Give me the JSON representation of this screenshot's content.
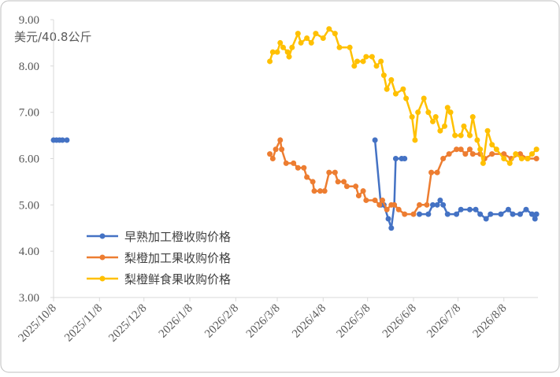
{
  "chart_data": {
    "type": "line",
    "y_label": "美元/40.8公斤",
    "xlim": [
      "2025/10/8",
      "2026/8/31"
    ],
    "xticks": [
      "2025/10/8",
      "2025/11/8",
      "2025/12/8",
      "2026/1/8",
      "2026/2/8",
      "2026/3/8",
      "2026/4/8",
      "2026/5/8",
      "2026/6/8",
      "2026/7/8",
      "2026/8/8"
    ],
    "ylim": [
      3,
      9
    ],
    "yticks": [
      {
        "value": 3,
        "label": "3.00"
      },
      {
        "value": 4,
        "label": "4.00"
      },
      {
        "value": 5,
        "label": "5.00"
      },
      {
        "value": 6,
        "label": "6.00"
      },
      {
        "value": 7,
        "label": "7.00"
      },
      {
        "value": 8,
        "label": "8.00"
      },
      {
        "value": 9,
        "label": "9.00"
      }
    ],
    "legend": "lower left",
    "series": [
      {
        "name": "早熟加工橙收购价格",
        "color": "#4472c4",
        "x": [
          "2025/10/8",
          "2025/10/10",
          "2025/10/12",
          "2025/10/14",
          "2025/10/17",
          "2025/10/20",
          "2026/5/13",
          "2026/5/17",
          "2026/5/19",
          "2026/5/22",
          "2026/5/24",
          "2026/5/26",
          "2026/5/27",
          "2026/5/31",
          "2026/6/2",
          "2026/6/7",
          "2026/6/12",
          "2026/6/18",
          "2026/6/21",
          "2026/6/24",
          "2026/6/26",
          "2026/6/28",
          "2026/7/1",
          "2026/7/7",
          "2026/7/10",
          "2026/7/16",
          "2026/7/20",
          "2026/7/23",
          "2026/7/27",
          "2026/7/30",
          "2026/8/6",
          "2026/8/11",
          "2026/8/14",
          "2026/8/19",
          "2026/8/23",
          "2026/8/27",
          "2026/8/29",
          "2026/8/30"
        ],
        "values": [
          6.4,
          6.4,
          6.4,
          6.4,
          6.4,
          null,
          6.4,
          5.0,
          5.0,
          4.7,
          4.5,
          5.0,
          6.0,
          6.0,
          6.0,
          null,
          4.8,
          4.8,
          5.0,
          5.0,
          5.1,
          5.0,
          4.8,
          4.8,
          4.9,
          4.9,
          4.9,
          4.8,
          4.7,
          4.8,
          4.8,
          4.9,
          4.8,
          4.8,
          4.9,
          4.8,
          4.7,
          4.8
        ]
      },
      {
        "name": "梨橙加工果收购价格",
        "color": "#ed7d31",
        "x": [
          "2026/3/3",
          "2026/3/5",
          "2026/3/7",
          "2026/3/10",
          "2026/3/11",
          "2026/3/14",
          "2026/3/19",
          "2026/3/22",
          "2026/3/26",
          "2026/3/28",
          "2026/4/1",
          "2026/4/2",
          "2026/4/6",
          "2026/4/9",
          "2026/4/12",
          "2026/4/16",
          "2026/4/18",
          "2026/4/22",
          "2026/4/24",
          "2026/4/30",
          "2026/5/2",
          "2026/5/5",
          "2026/5/7",
          "2026/5/13",
          "2026/5/16",
          "2026/5/18",
          "2026/5/21",
          "2026/5/24",
          "2026/5/26",
          "2026/5/29",
          "2026/6/2",
          "2026/6/8",
          "2026/6/12",
          "2026/6/17",
          "2026/6/20",
          "2026/6/24",
          "2026/6/28",
          "2026/7/2",
          "2026/7/7",
          "2026/7/10",
          "2026/7/13",
          "2026/7/16",
          "2026/7/18",
          "2026/7/23",
          "2026/7/26",
          "2026/7/31",
          "2026/8/8",
          "2026/8/13",
          "2026/8/19",
          "2026/8/24",
          "2026/8/30"
        ],
        "values": [
          6.1,
          6.0,
          6.2,
          6.4,
          6.2,
          5.9,
          5.9,
          5.8,
          5.8,
          5.6,
          5.5,
          5.3,
          5.3,
          5.3,
          5.7,
          5.7,
          5.5,
          5.5,
          5.4,
          5.4,
          5.2,
          5.3,
          5.1,
          5.1,
          5.0,
          5.1,
          4.9,
          5.0,
          5.0,
          4.9,
          4.8,
          4.8,
          5.0,
          5.0,
          5.7,
          5.7,
          6.0,
          6.1,
          6.2,
          6.2,
          6.1,
          6.2,
          6.1,
          6.1,
          6.0,
          6.1,
          6.1,
          6.0,
          6.1,
          6.0,
          6.0
        ]
      },
      {
        "name": "梨橙鲜食果收购价格",
        "color": "#ffc000",
        "x": [
          "2026/3/3",
          "2026/3/5",
          "2026/3/8",
          "2026/3/10",
          "2026/3/12",
          "2026/3/15",
          "2026/3/16",
          "2026/3/18",
          "2026/3/22",
          "2026/3/24",
          "2026/3/28",
          "2026/3/31",
          "2026/4/3",
          "2026/4/8",
          "2026/4/12",
          "2026/4/16",
          "2026/4/19",
          "2026/4/26",
          "2026/4/29",
          "2026/5/1",
          "2026/5/5",
          "2026/5/7",
          "2026/5/11",
          "2026/5/14",
          "2026/5/17",
          "2026/5/19",
          "2026/5/21",
          "2026/5/24",
          "2026/5/27",
          "2026/6/1",
          "2026/6/3",
          "2026/6/7",
          "2026/6/9",
          "2026/6/11",
          "2026/6/15",
          "2026/6/18",
          "2026/6/21",
          "2026/6/23",
          "2026/6/26",
          "2026/6/29",
          "2026/7/1",
          "2026/7/3",
          "2026/7/6",
          "2026/7/10",
          "2026/7/12",
          "2026/7/16",
          "2026/7/18",
          "2026/7/21",
          "2026/7/23",
          "2026/7/25",
          "2026/7/28",
          "2026/7/31",
          "2026/8/3",
          "2026/8/8",
          "2026/8/12",
          "2026/8/16",
          "2026/8/20",
          "2026/8/24",
          "2026/8/27",
          "2026/8/30"
        ],
        "values": [
          8.1,
          8.3,
          8.3,
          8.5,
          8.4,
          8.3,
          8.2,
          8.4,
          8.7,
          8.5,
          8.6,
          8.5,
          8.7,
          8.6,
          8.8,
          8.7,
          8.4,
          8.4,
          8.0,
          8.1,
          8.1,
          8.2,
          8.2,
          8.0,
          8.1,
          7.8,
          7.5,
          7.7,
          7.4,
          7.5,
          7.3,
          6.9,
          6.4,
          7.0,
          7.3,
          7.0,
          6.8,
          6.9,
          6.6,
          6.7,
          7.1,
          7.0,
          6.5,
          6.5,
          6.7,
          6.5,
          6.9,
          6.4,
          6.2,
          5.9,
          6.6,
          6.3,
          6.2,
          6.0,
          5.9,
          6.1,
          6.0,
          6.0,
          6.1,
          6.2
        ]
      }
    ]
  }
}
